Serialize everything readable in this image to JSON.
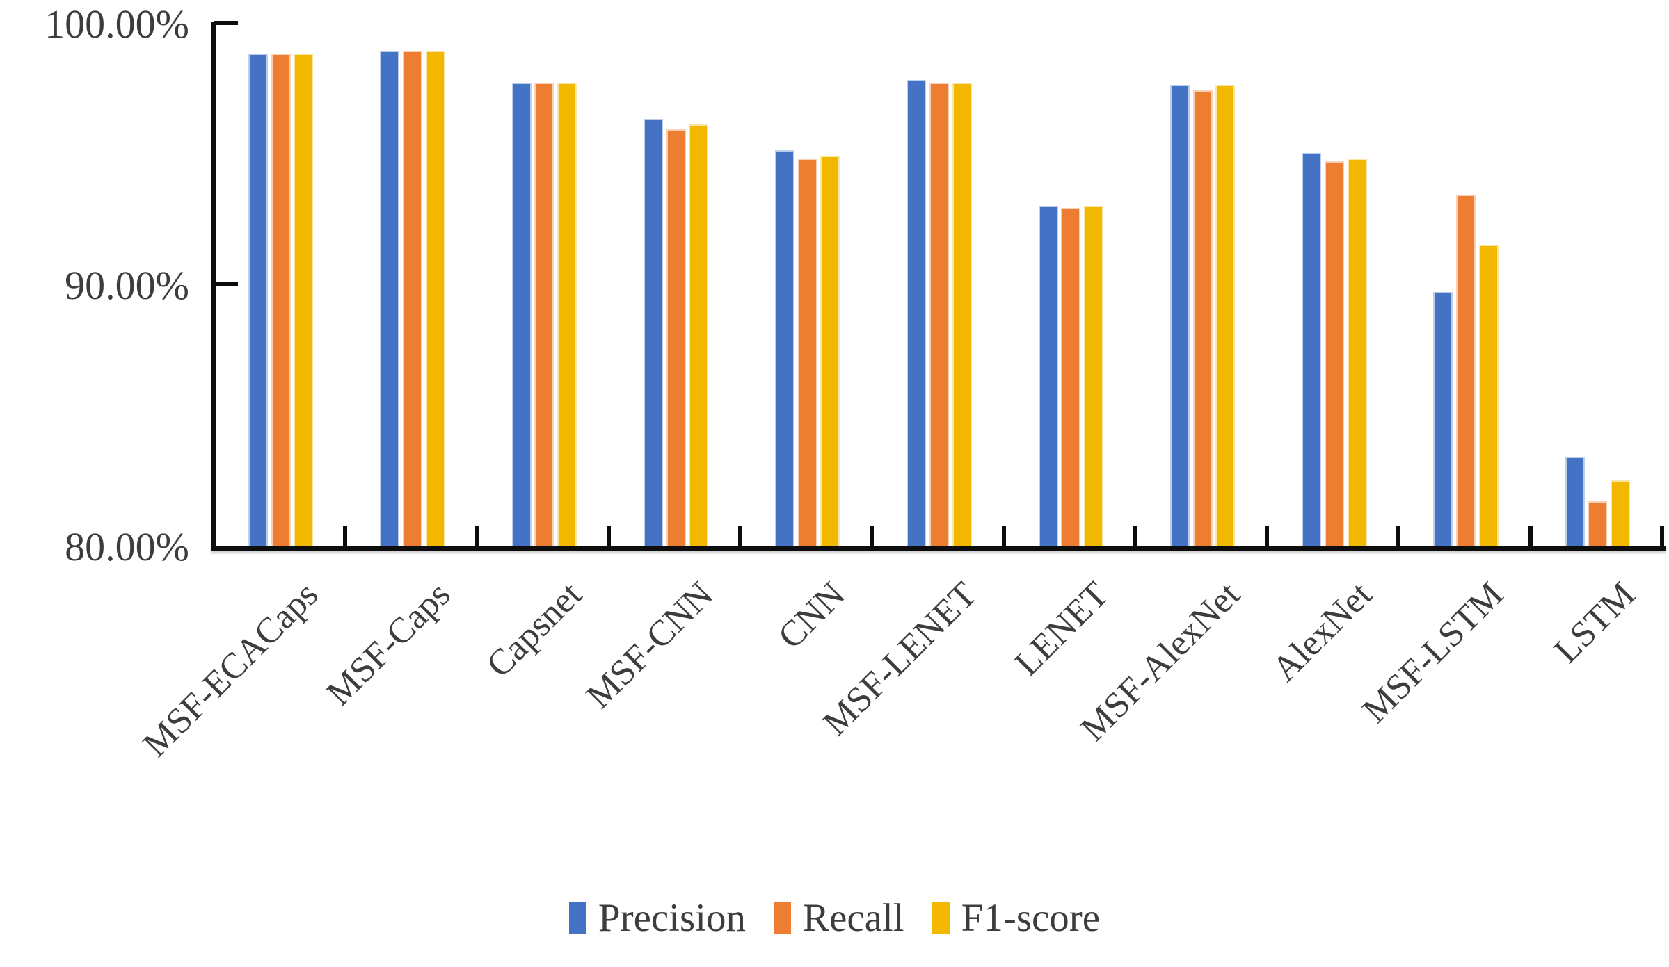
{
  "chart_data": {
    "type": "bar",
    "title": "",
    "xlabel": "",
    "ylabel": "",
    "categories": [
      "MSF-ECACaps",
      "MSF-Caps",
      "Capsnet",
      "MSF-CNN",
      "CNN",
      "MSF-LENET",
      "LENET",
      "MSF-AlexNet",
      "AlexNet",
      "MSF-LSTM",
      "LSTM"
    ],
    "series": [
      {
        "name": "Precision",
        "color": "#4472C4",
        "values": [
          98.8,
          98.9,
          97.7,
          96.3,
          95.1,
          97.8,
          93.0,
          97.6,
          95.0,
          89.7,
          83.4
        ]
      },
      {
        "name": "Recall",
        "color": "#ED7D31",
        "values": [
          98.8,
          98.9,
          97.7,
          95.9,
          94.8,
          97.7,
          92.9,
          97.4,
          94.7,
          93.4,
          81.7
        ]
      },
      {
        "name": "F1-score",
        "color": "#F2B800",
        "values": [
          98.8,
          98.9,
          97.7,
          96.1,
          94.9,
          97.7,
          93.0,
          97.6,
          94.8,
          91.5,
          82.5
        ]
      }
    ],
    "ylim": [
      80,
      100
    ],
    "yticks": [
      {
        "value": 100,
        "label": "100.00%"
      },
      {
        "value": 90,
        "label": "90.00%"
      },
      {
        "value": 80,
        "label": "80.00%"
      }
    ],
    "grid": false,
    "legend_position": "bottom",
    "axis_color": "#0d0d0d",
    "text_color": "#3d3d3d"
  }
}
